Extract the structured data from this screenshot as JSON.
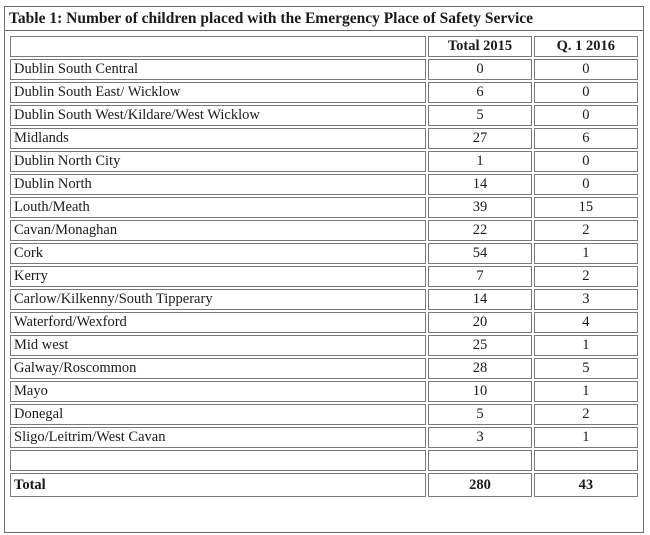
{
  "table": {
    "caption": "Table 1: Number of children placed with the Emergency Place of Safety Service",
    "columns": [
      "",
      "Total 2015",
      "Q. 1 2016"
    ],
    "rows": [
      {
        "region": "Dublin South Central",
        "total_2015": "0",
        "q1_2016": "0"
      },
      {
        "region": "Dublin South East/ Wicklow",
        "total_2015": "6",
        "q1_2016": "0"
      },
      {
        "region": "Dublin South West/Kildare/West Wicklow",
        "total_2015": "5",
        "q1_2016": "0"
      },
      {
        "region": "Midlands",
        "total_2015": "27",
        "q1_2016": "6"
      },
      {
        "region": "Dublin North City",
        "total_2015": "1",
        "q1_2016": "0"
      },
      {
        "region": "Dublin North",
        "total_2015": "14",
        "q1_2016": "0"
      },
      {
        "region": "Louth/Meath",
        "total_2015": "39",
        "q1_2016": "15"
      },
      {
        "region": "Cavan/Monaghan",
        "total_2015": "22",
        "q1_2016": "2"
      },
      {
        "region": "Cork",
        "total_2015": "54",
        "q1_2016": "1"
      },
      {
        "region": "Kerry",
        "total_2015": "7",
        "q1_2016": "2"
      },
      {
        "region": "Carlow/Kilkenny/South Tipperary",
        "total_2015": "14",
        "q1_2016": "3"
      },
      {
        "region": "Waterford/Wexford",
        "total_2015": "20",
        "q1_2016": "4"
      },
      {
        "region": "Mid west",
        "total_2015": "25",
        "q1_2016": "1"
      },
      {
        "region": "Galway/Roscommon",
        "total_2015": "28",
        "q1_2016": "5"
      },
      {
        "region": "Mayo",
        "total_2015": "10",
        "q1_2016": "1"
      },
      {
        "region": "Donegal",
        "total_2015": "5",
        "q1_2016": "2"
      },
      {
        "region": "Sligo/Leitrim/West Cavan",
        "total_2015": "3",
        "q1_2016": "1"
      }
    ],
    "total": {
      "label": "Total",
      "total_2015": "280",
      "q1_2016": "43"
    }
  }
}
